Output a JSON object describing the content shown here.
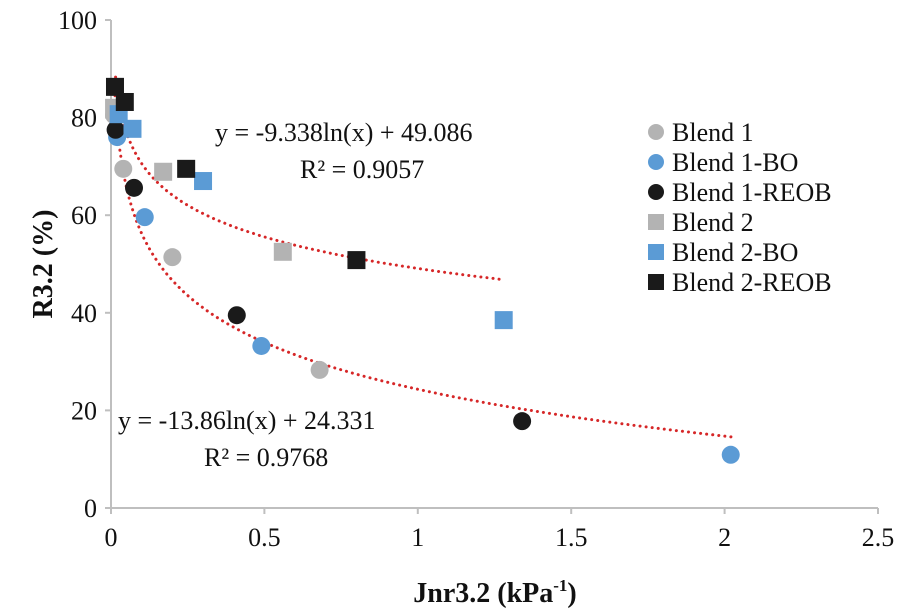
{
  "chart_data": {
    "type": "scatter",
    "xlabel": "Jnr3.2 (kPa",
    "xlabel_sup": "-1",
    "xlabel_close": ")",
    "ylabel": "R3.2  (%)",
    "xlim": [
      0,
      2.5
    ],
    "ylim": [
      0,
      100
    ],
    "xticks": [
      "0",
      "0.5",
      "1",
      "1.5",
      "2",
      "2.5"
    ],
    "yticks": [
      "0",
      "20",
      "40",
      "60",
      "80",
      "100"
    ],
    "grid": false,
    "legend_position": "right",
    "series": [
      {
        "name": "Blend 1",
        "marker": "circle",
        "color": "#b3b3b3",
        "points": [
          [
            0.01,
            80.5
          ],
          [
            0.04,
            69.5
          ],
          [
            0.2,
            51.4
          ],
          [
            0.68,
            28.3
          ]
        ]
      },
      {
        "name": "Blend 1-BO",
        "marker": "circle",
        "color": "#5b9bd5",
        "points": [
          [
            0.02,
            76
          ],
          [
            0.11,
            59.6
          ],
          [
            0.49,
            33.2
          ],
          [
            2.02,
            10.9
          ]
        ]
      },
      {
        "name": "Blend 1-REOB",
        "marker": "circle",
        "color": "#1a1a1a",
        "points": [
          [
            0.015,
            77.5
          ],
          [
            0.075,
            65.6
          ],
          [
            0.41,
            39.5
          ],
          [
            1.34,
            17.8
          ]
        ]
      },
      {
        "name": "Blend 2",
        "marker": "square",
        "color": "#b3b3b3",
        "points": [
          [
            0.01,
            82
          ],
          [
            0.17,
            68.9
          ],
          [
            0.56,
            52.5
          ]
        ]
      },
      {
        "name": "Blend 2-BO",
        "marker": "square",
        "color": "#5b9bd5",
        "points": [
          [
            0.025,
            80.7
          ],
          [
            0.07,
            77.7
          ],
          [
            0.3,
            67
          ],
          [
            1.28,
            38.5
          ]
        ]
      },
      {
        "name": "Blend 2-REOB",
        "marker": "square",
        "color": "#1a1a1a",
        "points": [
          [
            0.013,
            86.3
          ],
          [
            0.045,
            83.2
          ],
          [
            0.245,
            69.5
          ],
          [
            0.8,
            50.8
          ]
        ]
      }
    ],
    "trendlines": [
      {
        "type": "log",
        "a": -9.338,
        "b": 49.086,
        "x_range": [
          0.015,
          1.27
        ],
        "color": "#d62728",
        "equation": "y = -9.338ln(x) + 49.086",
        "r2": "R² = 0.9057"
      },
      {
        "type": "log",
        "a": -13.86,
        "b": 24.331,
        "x_range": [
          0.013,
          2.03
        ],
        "color": "#d62728",
        "equation": "y = -13.86ln(x) + 24.331",
        "r2": "R² = 0.9768"
      }
    ]
  }
}
